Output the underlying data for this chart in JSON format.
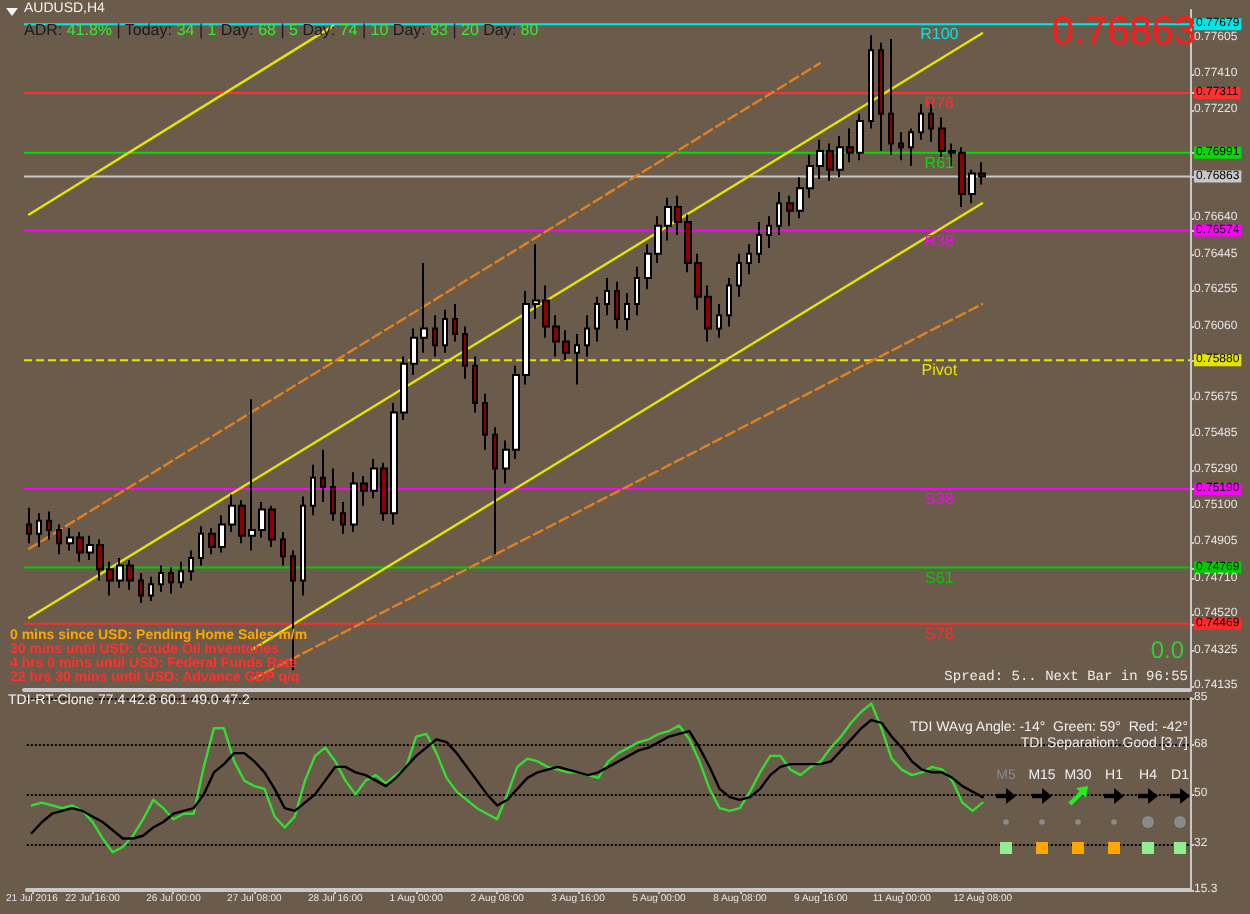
{
  "chart_data": [
    {
      "type": "candlestick",
      "title": "AUDUSD,H4",
      "subtitle": "ADR: 41.8% | Today: 34 | 1 Day: 68 | 5 Day: 74 | 10 Day: 83 | 20 Day: 80",
      "categories": [
        "21 Jul 2016",
        null,
        null,
        null,
        null,
        null,
        "22 Jul 16:00",
        null,
        null,
        null,
        null,
        null,
        null,
        null,
        "26 Jul 00:00",
        null,
        null,
        null,
        null,
        null,
        null,
        null,
        "27 Jul 08:00",
        null,
        null,
        null,
        null,
        null,
        null,
        null,
        "28 Jul 16:00",
        null,
        null,
        null,
        null,
        null,
        null,
        null,
        "1 Aug 00:00",
        null,
        null,
        null,
        null,
        null,
        null,
        null,
        "2 Aug 08:00",
        null,
        null,
        null,
        null,
        null,
        null,
        null,
        "3 Aug 16:00",
        null,
        null,
        null,
        null,
        null,
        null,
        null,
        "5 Aug 00:00",
        null,
        null,
        null,
        null,
        null,
        null,
        null,
        "8 Aug 08:00",
        null,
        null,
        null,
        null,
        null,
        null,
        null,
        "9 Aug 16:00",
        null,
        null,
        null,
        null,
        null,
        null,
        null,
        "11 Aug 00:00",
        null,
        null,
        null,
        null,
        null,
        null,
        null,
        "12 Aug 08:00",
        null,
        null,
        null,
        null,
        null,
        null,
        null,
        null,
        null,
        null,
        null,
        null,
        null,
        null,
        null,
        null,
        null,
        null,
        null,
        null
      ],
      "ohlc": [
        [
          0.75,
          0.7509,
          0.749,
          0.7495
        ],
        [
          0.7495,
          0.7506,
          0.7488,
          0.7502
        ],
        [
          0.7502,
          0.7507,
          0.7492,
          0.7497
        ],
        [
          0.7497,
          0.75,
          0.7484,
          0.749
        ],
        [
          0.749,
          0.7498,
          0.7486,
          0.7493
        ],
        [
          0.7493,
          0.7496,
          0.748,
          0.7485
        ],
        [
          0.7485,
          0.7494,
          0.7481,
          0.7489
        ],
        [
          0.7489,
          0.7492,
          0.747,
          0.7476
        ],
        [
          0.7476,
          0.748,
          0.7462,
          0.747
        ],
        [
          0.747,
          0.7482,
          0.7466,
          0.7478
        ],
        [
          0.7478,
          0.7481,
          0.7465,
          0.747
        ],
        [
          0.747,
          0.7474,
          0.7458,
          0.7462
        ],
        [
          0.7462,
          0.7472,
          0.7459,
          0.7468
        ],
        [
          0.7468,
          0.7478,
          0.7464,
          0.7474
        ],
        [
          0.7474,
          0.7477,
          0.7463,
          0.7469
        ],
        [
          0.7469,
          0.748,
          0.7466,
          0.7475
        ],
        [
          0.7475,
          0.7486,
          0.747,
          0.7482
        ],
        [
          0.7482,
          0.7499,
          0.7478,
          0.7495
        ],
        [
          0.7495,
          0.7498,
          0.7484,
          0.7488
        ],
        [
          0.7488,
          0.7505,
          0.7485,
          0.75
        ],
        [
          0.75,
          0.7516,
          0.7496,
          0.751
        ],
        [
          0.751,
          0.7513,
          0.749,
          0.7494
        ],
        [
          0.7494,
          0.7567,
          0.7486,
          0.7497
        ],
        [
          0.7497,
          0.7512,
          0.7493,
          0.7508
        ],
        [
          0.7508,
          0.751,
          0.7488,
          0.7492
        ],
        [
          0.7492,
          0.7496,
          0.7478,
          0.7483
        ],
        [
          0.7483,
          0.7486,
          0.7422,
          0.747
        ],
        [
          0.747,
          0.7515,
          0.7462,
          0.751
        ],
        [
          0.751,
          0.7532,
          0.7505,
          0.7525
        ],
        [
          0.7525,
          0.754,
          0.7512,
          0.752
        ],
        [
          0.752,
          0.753,
          0.7502,
          0.7506
        ],
        [
          0.7506,
          0.7512,
          0.7495,
          0.75
        ],
        [
          0.75,
          0.7528,
          0.7496,
          0.7522
        ],
        [
          0.7522,
          0.7526,
          0.751,
          0.7518
        ],
        [
          0.7518,
          0.7535,
          0.7514,
          0.753
        ],
        [
          0.753,
          0.7533,
          0.7502,
          0.7506
        ],
        [
          0.7506,
          0.7565,
          0.75,
          0.756
        ],
        [
          0.756,
          0.759,
          0.7556,
          0.7586
        ],
        [
          0.7586,
          0.7605,
          0.758,
          0.76
        ],
        [
          0.76,
          0.764,
          0.7592,
          0.7605
        ],
        [
          0.7605,
          0.7612,
          0.759,
          0.7596
        ],
        [
          0.7596,
          0.7615,
          0.7592,
          0.761
        ],
        [
          0.761,
          0.7618,
          0.7598,
          0.7602
        ],
        [
          0.7602,
          0.7606,
          0.7578,
          0.7585
        ],
        [
          0.7585,
          0.759,
          0.756,
          0.7565
        ],
        [
          0.7565,
          0.757,
          0.754,
          0.7548
        ],
        [
          0.7548,
          0.7552,
          0.7484,
          0.753
        ],
        [
          0.753,
          0.7545,
          0.7522,
          0.754
        ],
        [
          0.754,
          0.7585,
          0.7535,
          0.758
        ],
        [
          0.758,
          0.7625,
          0.7575,
          0.7618
        ],
        [
          0.7618,
          0.765,
          0.761,
          0.762
        ],
        [
          0.762,
          0.7628,
          0.76,
          0.7606
        ],
        [
          0.7606,
          0.7612,
          0.759,
          0.7598
        ],
        [
          0.7598,
          0.7604,
          0.7588,
          0.7592
        ],
        [
          0.7592,
          0.7602,
          0.7575,
          0.7596
        ],
        [
          0.7596,
          0.7612,
          0.759,
          0.7605
        ],
        [
          0.7605,
          0.7622,
          0.7598,
          0.7618
        ],
        [
          0.7618,
          0.7632,
          0.7612,
          0.7625
        ],
        [
          0.7625,
          0.763,
          0.7605,
          0.761
        ],
        [
          0.761,
          0.7624,
          0.7604,
          0.7618
        ],
        [
          0.7618,
          0.7638,
          0.7612,
          0.7632
        ],
        [
          0.7632,
          0.765,
          0.7626,
          0.7645
        ],
        [
          0.7645,
          0.7665,
          0.764,
          0.766
        ],
        [
          0.766,
          0.7675,
          0.7652,
          0.767
        ],
        [
          0.767,
          0.7676,
          0.7655,
          0.7662
        ],
        [
          0.7662,
          0.7666,
          0.7635,
          0.764
        ],
        [
          0.764,
          0.7645,
          0.7615,
          0.7622
        ],
        [
          0.7622,
          0.7628,
          0.7598,
          0.7605
        ],
        [
          0.7605,
          0.7618,
          0.76,
          0.7612
        ],
        [
          0.7612,
          0.7632,
          0.7606,
          0.7628
        ],
        [
          0.7628,
          0.7645,
          0.7622,
          0.764
        ],
        [
          0.764,
          0.765,
          0.7634,
          0.7645
        ],
        [
          0.7645,
          0.7662,
          0.764,
          0.7655
        ],
        [
          0.7655,
          0.7665,
          0.7648,
          0.766
        ],
        [
          0.766,
          0.7678,
          0.7655,
          0.7672
        ],
        [
          0.7672,
          0.7676,
          0.766,
          0.7668
        ],
        [
          0.7668,
          0.7686,
          0.7664,
          0.768
        ],
        [
          0.768,
          0.7698,
          0.7675,
          0.7692
        ],
        [
          0.7692,
          0.7706,
          0.7685,
          0.77
        ],
        [
          0.77,
          0.7704,
          0.7684,
          0.769
        ],
        [
          0.769,
          0.7708,
          0.7686,
          0.7702
        ],
        [
          0.7702,
          0.7712,
          0.7694,
          0.7699
        ],
        [
          0.7699,
          0.772,
          0.7695,
          0.7716
        ],
        [
          0.7716,
          0.7762,
          0.7712,
          0.7754
        ],
        [
          0.7754,
          0.7758,
          0.77,
          0.772
        ],
        [
          0.772,
          0.776,
          0.7698,
          0.7704
        ],
        [
          0.7704,
          0.771,
          0.7695,
          0.7702
        ],
        [
          0.7702,
          0.7712,
          0.7692,
          0.771
        ],
        [
          0.771,
          0.7725,
          0.7706,
          0.772
        ],
        [
          0.772,
          0.7726,
          0.7705,
          0.7712
        ],
        [
          0.7712,
          0.7718,
          0.7696,
          0.77
        ],
        [
          0.77,
          0.7704,
          0.7692,
          0.7699
        ],
        [
          0.7699,
          0.7702,
          0.767,
          0.7677
        ],
        [
          0.7677,
          0.769,
          0.7672,
          0.7688
        ],
        [
          0.7688,
          0.7694,
          0.7682,
          0.76863
        ],
        null,
        null,
        null,
        null,
        null,
        null,
        null,
        null,
        null,
        null,
        null,
        null,
        null,
        null,
        null,
        null,
        null,
        null,
        null,
        null
      ],
      "series": [
        {
          "type": "line",
          "color": "#e5e500",
          "line_style": "solid",
          "x": [
            "21 Jul 2016",
            "28 Jul 16:00"
          ],
          "values": [
            0.7666,
            0.7767
          ]
        },
        {
          "type": "line",
          "color": "#e5e500",
          "line_style": "solid",
          "x": [
            "21 Jul 2016",
            "12 Aug 08:00"
          ],
          "values": [
            0.745,
            0.7763
          ]
        },
        {
          "type": "line",
          "color": "#e5e500",
          "line_style": "solid",
          "x": [
            "27 Jul 08:00",
            "12 Aug 08:00"
          ],
          "values": [
            0.7433,
            0.7672
          ]
        },
        {
          "type": "line",
          "color": "#e08020",
          "line_style": "dashed",
          "x": [
            "21 Jul 2016",
            "9 Aug 16:00"
          ],
          "values": [
            0.7487,
            0.7747
          ]
        },
        {
          "type": "line",
          "color": "#e08020",
          "line_style": "dashed",
          "x": [
            "27 Jul 08:00",
            "12 Aug 08:00"
          ],
          "values": [
            0.7417,
            0.7618
          ]
        }
      ],
      "marker": "none",
      "ylim": [
        0.74115,
        0.77755
      ],
      "yticks": [
        0.77679,
        0.77605,
        {
          "value": 0.7741,
          "label": "0.77410"
        },
        0.77311,
        {
          "value": 0.7722,
          "label": "0.77220"
        },
        0.76991,
        0.76863,
        {
          "value": 0.7664,
          "label": "0.76640"
        },
        0.76574,
        0.76445,
        0.76255,
        {
          "value": 0.7606,
          "label": "0.76060"
        },
        {
          "value": 0.7588,
          "label": "0.75880"
        },
        0.75675,
        0.75485,
        {
          "value": 0.7529,
          "label": "0.75290"
        },
        {
          "value": 0.7519,
          "label": "0.75190"
        },
        {
          "value": 0.751,
          "label": "0.75100"
        },
        0.74905,
        0.74769,
        {
          "value": 0.7471,
          "label": "0.74710"
        },
        {
          "value": 0.7452,
          "label": "0.74520"
        },
        0.74469,
        0.74325,
        0.74135
      ],
      "tick_labels": "y",
      "ref_lines": [
        {
          "axis": "y",
          "value": 0.77679,
          "label": "R100",
          "color": "#00e5e5"
        },
        {
          "axis": "y",
          "value": 0.77311,
          "label": "R78",
          "color": "#ff3030"
        },
        {
          "axis": "y",
          "value": 0.76991,
          "label": "R61",
          "color": "#00dd00"
        },
        {
          "axis": "y",
          "value": 0.76863,
          "label": null,
          "color": "#c8c8c8"
        },
        {
          "axis": "y",
          "value": 0.76574,
          "label": "R38",
          "color": "#ff00ff"
        },
        {
          "axis": "y",
          "value": 0.7588,
          "label": "Pivot",
          "color": "#e5e500",
          "line_style": "dashed"
        },
        {
          "axis": "y",
          "value": 0.7519,
          "label": "S38",
          "color": "#ff00ff"
        },
        {
          "axis": "y",
          "value": 0.74769,
          "label": "S61",
          "color": "#00cc00"
        },
        {
          "axis": "y",
          "value": 0.74469,
          "label": "S78",
          "color": "#ff2a2a"
        }
      ],
      "annotations": [
        "0.76863",
        "0 mins since USD: Pending Home Sales m/m",
        "30 mins until USD: Crude Oil Inventories",
        "4 hrs 0 mins until USD: Federal Funds Rate",
        "22 hrs 30 mins until USD: Advance GDP q/q",
        "0.0",
        "Spread: 5.. Next Bar in 96:55"
      ]
    },
    {
      "type": "line",
      "title": "TDI-RT-Clone 77.4 42.8 60.1 49.0 47.2",
      "categories": [
        "21 Jul 2016",
        null,
        null,
        null,
        null,
        null,
        "22 Jul 16:00",
        null,
        null,
        null,
        null,
        null,
        null,
        null,
        "26 Jul 00:00",
        null,
        null,
        null,
        null,
        null,
        null,
        null,
        "27 Jul 08:00",
        null,
        null,
        null,
        null,
        null,
        null,
        null,
        "28 Jul 16:00",
        null,
        null,
        null,
        null,
        null,
        null,
        null,
        "1 Aug 00:00",
        null,
        null,
        null,
        null,
        null,
        null,
        null,
        "2 Aug 08:00",
        null,
        null,
        null,
        null,
        null,
        null,
        null,
        "3 Aug 16:00",
        null,
        null,
        null,
        null,
        null,
        null,
        null,
        "5 Aug 00:00",
        null,
        null,
        null,
        null,
        null,
        null,
        null,
        "8 Aug 08:00",
        null,
        null,
        null,
        null,
        null,
        null,
        null,
        "9 Aug 16:00",
        null,
        null,
        null,
        null,
        null,
        null,
        null,
        "11 Aug 00:00",
        null,
        null,
        null,
        null,
        null,
        null,
        null,
        "12 Aug 08:00",
        null,
        null,
        null,
        null,
        null,
        null,
        null,
        null,
        null,
        null,
        null,
        null,
        null,
        null,
        null,
        null,
        null,
        null,
        null,
        null
      ],
      "series": [
        {
          "color": "#33dd33",
          "values": [
            46,
            47,
            46,
            45,
            46,
            44,
            40,
            34,
            29,
            31,
            35,
            41,
            48,
            45,
            41,
            43,
            43,
            60,
            74,
            74,
            62,
            55,
            53,
            52,
            42,
            38,
            42,
            55,
            64,
            67,
            62,
            55,
            50,
            55,
            57,
            54,
            57,
            60,
            71,
            72,
            65,
            56,
            51,
            48,
            45,
            43,
            41,
            50,
            60,
            63,
            62,
            60,
            59,
            58,
            58,
            57,
            56,
            62,
            65,
            67,
            69,
            70,
            72,
            73,
            75,
            70,
            62,
            52,
            45,
            44,
            45,
            51,
            58,
            64,
            64,
            59,
            57,
            60,
            62,
            67,
            71,
            76,
            80,
            83,
            74,
            63,
            59,
            57,
            58,
            60,
            59,
            55,
            47,
            44,
            47,
            null,
            null,
            null,
            null,
            null,
            null,
            null,
            null,
            null,
            null,
            null,
            null,
            null,
            null,
            null,
            null,
            null,
            null,
            null,
            null
          ]
        },
        {
          "color": "#000000",
          "values": [
            36,
            40,
            43,
            44,
            45,
            44,
            42,
            40,
            37,
            34,
            34,
            35,
            38,
            40,
            43,
            44,
            45,
            50,
            58,
            61,
            65,
            65,
            62,
            58,
            52,
            45,
            44,
            47,
            50,
            55,
            60,
            60,
            58,
            57,
            55,
            53,
            56,
            60,
            64,
            67,
            70,
            69,
            65,
            60,
            55,
            50,
            46,
            48,
            52,
            56,
            58,
            59,
            60,
            59,
            58,
            57,
            58,
            60,
            62,
            64,
            66,
            67,
            69,
            71,
            72,
            73,
            67,
            60,
            52,
            49,
            48,
            49,
            52,
            57,
            60,
            61,
            61,
            61,
            61,
            62,
            66,
            70,
            74,
            77,
            76,
            71,
            67,
            62,
            59,
            58,
            58,
            56,
            53,
            51,
            49,
            null,
            null,
            null,
            null,
            null,
            null,
            null,
            null,
            null,
            null,
            null,
            null,
            null,
            null,
            null,
            null,
            null,
            null,
            null,
            null
          ]
        }
      ],
      "marker": "none",
      "ylim": [
        15.3,
        85
      ],
      "yticks": [
        15.3,
        32,
        50,
        68,
        85
      ],
      "grid": "y",
      "annotations": [
        "TDI WAvg Angle: -14°  Green: 59°  Red: -42°",
        "TDI Separation: Good [3.7]",
        "M5",
        "M15",
        "M30",
        "H1",
        "H4",
        "D1"
      ]
    }
  ]
}
